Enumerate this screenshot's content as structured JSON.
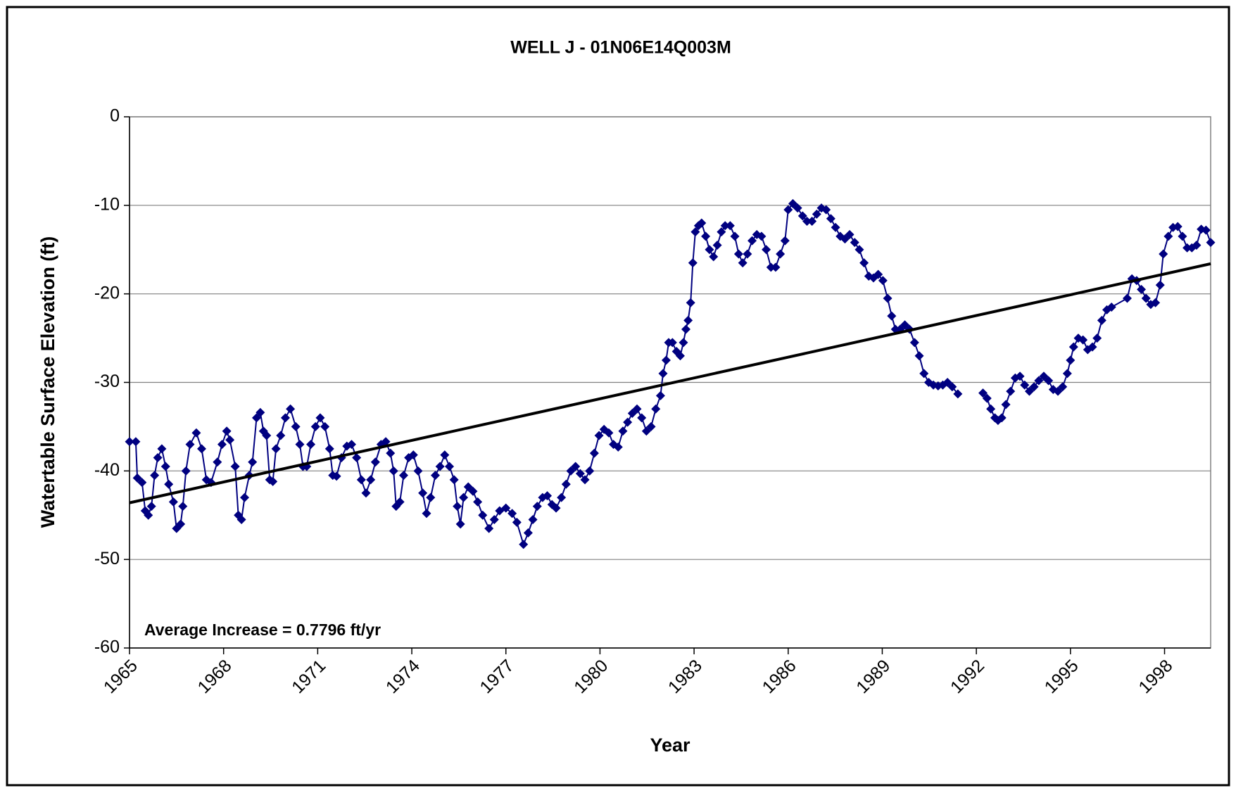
{
  "chart_data": {
    "type": "line",
    "title": "WELL J - 01N06E14Q003M",
    "xlabel": "Year",
    "ylabel": "Watertable Surface Elevation (ft)",
    "annotation": "Average Increase = 0.7796 ft/yr",
    "color": "#000080",
    "xlim": [
      1965,
      1999.47
    ],
    "ylim": [
      -60,
      0
    ],
    "xticks": [
      1965,
      1968,
      1971,
      1974,
      1977,
      1980,
      1983,
      1986,
      1989,
      1992,
      1995,
      1998
    ],
    "yticks": [
      -60,
      -50,
      -40,
      -30,
      -20,
      -10,
      0
    ],
    "grid": true,
    "x": [
      1965.0,
      1965.2,
      1965.25,
      1965.4,
      1965.5,
      1965.6,
      1965.7,
      1965.8,
      1965.9,
      1966.03,
      1966.15,
      1966.25,
      1966.4,
      1966.5,
      1966.63,
      1966.7,
      1966.8,
      1966.93,
      1967.13,
      1967.3,
      1967.45,
      1967.6,
      1967.8,
      1967.95,
      1968.1,
      1968.2,
      1968.37,
      1968.47,
      1968.57,
      1968.67,
      1968.82,
      1968.92,
      1969.05,
      1969.17,
      1969.27,
      1969.37,
      1969.47,
      1969.57,
      1969.67,
      1969.82,
      1969.97,
      1970.13,
      1970.3,
      1970.43,
      1970.53,
      1970.65,
      1970.78,
      1970.93,
      1971.08,
      1971.23,
      1971.38,
      1971.48,
      1971.6,
      1971.76,
      1971.93,
      1972.08,
      1972.24,
      1972.39,
      1972.54,
      1972.69,
      1972.84,
      1973.02,
      1973.17,
      1973.32,
      1973.42,
      1973.5,
      1973.62,
      1973.74,
      1973.9,
      1974.05,
      1974.2,
      1974.35,
      1974.47,
      1974.6,
      1974.75,
      1974.9,
      1975.05,
      1975.2,
      1975.35,
      1975.45,
      1975.55,
      1975.65,
      1975.8,
      1975.95,
      1976.1,
      1976.26,
      1976.46,
      1976.63,
      1976.8,
      1977.0,
      1977.2,
      1977.35,
      1977.56,
      1977.71,
      1977.86,
      1978.0,
      1978.17,
      1978.32,
      1978.47,
      1978.6,
      1978.77,
      1978.92,
      1979.07,
      1979.22,
      1979.37,
      1979.52,
      1979.67,
      1979.82,
      1979.97,
      1980.13,
      1980.28,
      1980.43,
      1980.58,
      1980.73,
      1980.88,
      1981.03,
      1981.18,
      1981.33,
      1981.48,
      1981.63,
      1981.78,
      1981.93,
      1982.01,
      1982.11,
      1982.19,
      1982.31,
      1982.44,
      1982.56,
      1982.66,
      1982.74,
      1982.81,
      1982.89,
      1982.96,
      1983.04,
      1983.14,
      1983.24,
      1983.37,
      1983.49,
      1983.62,
      1983.74,
      1983.87,
      1983.99,
      1984.15,
      1984.3,
      1984.42,
      1984.55,
      1984.7,
      1984.85,
      1985.0,
      1985.15,
      1985.3,
      1985.45,
      1985.6,
      1985.75,
      1985.9,
      1986.0,
      1986.15,
      1986.3,
      1986.46,
      1986.6,
      1986.76,
      1986.91,
      1987.06,
      1987.21,
      1987.36,
      1987.51,
      1987.66,
      1987.81,
      1987.96,
      1988.12,
      1988.27,
      1988.42,
      1988.57,
      1988.72,
      1988.87,
      1989.02,
      1989.17,
      1989.3,
      1989.42,
      1989.57,
      1989.72,
      1989.87,
      1990.03,
      1990.18,
      1990.33,
      1990.48,
      1990.63,
      1990.78,
      1990.93,
      1991.08,
      1991.23,
      1991.41,
      1991.8,
      1992.21,
      1992.34,
      1992.46,
      1992.59,
      1992.69,
      1992.81,
      1992.94,
      1993.09,
      1993.24,
      1993.39,
      1993.54,
      1993.69,
      1993.84,
      1993.99,
      1994.15,
      1994.3,
      1994.45,
      1994.6,
      1994.75,
      1994.9,
      1995.0,
      1995.1,
      1995.25,
      1995.4,
      1995.55,
      1995.7,
      1995.85,
      1996.0,
      1996.16,
      1996.31,
      1996.81,
      1996.96,
      1997.11,
      1997.26,
      1997.41,
      1997.56,
      1997.71,
      1997.86,
      1997.96,
      1998.12,
      1998.27,
      1998.42,
      1998.57,
      1998.72,
      1998.87,
      1999.02,
      1999.17,
      1999.32,
      1999.47
    ],
    "values": [
      -36.7,
      -36.7,
      -40.8,
      -41.3,
      -44.5,
      -45,
      -44,
      -40.5,
      -38.5,
      -37.5,
      -39.5,
      -41.5,
      -43.5,
      -46.5,
      -46,
      -44,
      -40,
      -37,
      -35.7,
      -37.5,
      -41,
      -41.3,
      -39,
      -37,
      -35.5,
      -36.5,
      -39.5,
      -45,
      -45.5,
      -43,
      -40.5,
      -39,
      -34,
      -33.4,
      -35.5,
      -36,
      -41,
      -41.2,
      -37.5,
      -36,
      -34,
      -33,
      -35,
      -37,
      -39.5,
      -39.5,
      -37,
      -35,
      -34,
      -35,
      -37.5,
      -40.5,
      -40.6,
      -38.5,
      -37.2,
      -37,
      -38.5,
      -41,
      -42.5,
      -41,
      -39,
      -37,
      -36.7,
      -38,
      -40,
      -44,
      -43.5,
      -40.5,
      -38.5,
      -38.2,
      -40,
      -42.5,
      -44.8,
      -43,
      -40.5,
      -39.5,
      -38.2,
      -39.5,
      -41,
      -44,
      -46,
      -43,
      -41.8,
      -42.3,
      -43.5,
      -45,
      -46.5,
      -45.5,
      -44.5,
      -44.2,
      -44.8,
      -45.8,
      -48.3,
      -47,
      -45.5,
      -44,
      -43,
      -42.8,
      -43.8,
      -44.2,
      -43,
      -41.5,
      -40,
      -39.5,
      -40.3,
      -41,
      -40,
      -38,
      -36,
      -35.3,
      -35.7,
      -37,
      -37.3,
      -35.5,
      -34.5,
      -33.5,
      -33,
      -34,
      -35.5,
      -35,
      -33,
      -31.5,
      -29,
      -27.5,
      -25.5,
      -25.5,
      -26.5,
      -27,
      -25.5,
      -24,
      -23,
      -21,
      -16.5,
      -13,
      -12.3,
      -12,
      -13.5,
      -15,
      -15.8,
      -14.5,
      -13,
      -12.3,
      -12.3,
      -13.5,
      -15.5,
      -16.5,
      -15.5,
      -14,
      -13.3,
      -13.5,
      -15,
      -17,
      -17,
      -15.5,
      -14,
      -10.5,
      -9.8,
      -10.3,
      -11.2,
      -11.8,
      -11.8,
      -11,
      -10.3,
      -10.5,
      -11.5,
      -12.5,
      -13.5,
      -13.8,
      -13.3,
      -14.2,
      -15,
      -16.5,
      -18,
      -18.2,
      -17.8,
      -18.5,
      -20.5,
      -22.5,
      -24,
      -24,
      -23.5,
      -24,
      -25.5,
      -27,
      -29,
      -30,
      -30.3,
      -30.4,
      -30.3,
      -30,
      -30.5,
      -31.3,
      null,
      -31.2,
      -31.8,
      -33,
      -34,
      -34.3,
      -34,
      -32.5,
      -31,
      -29.5,
      -29.3,
      -30.3,
      -31,
      -30.5,
      -29.8,
      -29.3,
      -29.8,
      -30.8,
      -31,
      -30.5,
      -29,
      -27.5,
      -26,
      -25,
      -25.2,
      -26.3,
      -26,
      -25,
      -23,
      -21.8,
      -21.5,
      -20.5,
      -18.3,
      -18.5,
      -19.5,
      -20.5,
      -21.2,
      -21,
      -19,
      -15.5,
      -13.5,
      -12.5,
      -12.4,
      -13.5,
      -14.8,
      -14.8,
      -14.5,
      -12.7,
      -12.8,
      -14.2
    ],
    "trend": {
      "x": [
        1965,
        1999.47
      ],
      "values": [
        -43.6,
        -16.6
      ],
      "color": "#000000"
    }
  }
}
